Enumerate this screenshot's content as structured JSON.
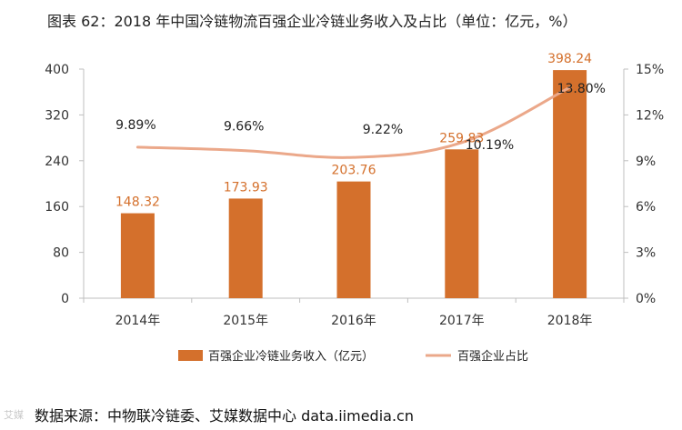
{
  "page": {
    "title": "图表 62：2018 年中国冷链物流百强企业冷链业务收入及占比（单位：亿元，%）",
    "source": "数据来源：中物联冷链委、艾媒数据中心  data.iimedia.cn",
    "logo": "艾媒"
  },
  "chart_data": {
    "type": "bar",
    "title": "2018 年中国冷链物流百强企业冷链业务收入及占比（单位：亿元，%）",
    "categories": [
      "2014年",
      "2015年",
      "2016年",
      "2017年",
      "2018年"
    ],
    "series": [
      {
        "name": "百强企业冷链业务收入（亿元）",
        "type": "bar",
        "axis": "left",
        "values": [
          148.32,
          173.93,
          203.76,
          259.83,
          398.24
        ],
        "labels": [
          "148.32",
          "173.93",
          "203.76",
          "259.83",
          "398.24"
        ]
      },
      {
        "name": "百强企业占比",
        "type": "line",
        "axis": "right",
        "values": [
          9.89,
          9.66,
          9.22,
          10.19,
          13.8
        ],
        "labels": [
          "9.89%",
          "9.66%",
          "9.22%",
          "10.19%",
          "13.80%"
        ]
      }
    ],
    "y_left": {
      "ylim": [
        0,
        400
      ],
      "ticks": [
        "0",
        "80",
        "160",
        "240",
        "320",
        "400"
      ],
      "tick_values": [
        0,
        80,
        160,
        240,
        320,
        400
      ]
    },
    "y_right": {
      "ylim": [
        0,
        15
      ],
      "ticks": [
        "0%",
        "3%",
        "6%",
        "9%",
        "12%",
        "15%"
      ],
      "tick_values": [
        0,
        3,
        6,
        9,
        12,
        15
      ]
    },
    "legend_position": "bottom",
    "colors": {
      "bar": "#d4702c",
      "line": "#eba88a",
      "axis": "#bfbfbf"
    }
  }
}
